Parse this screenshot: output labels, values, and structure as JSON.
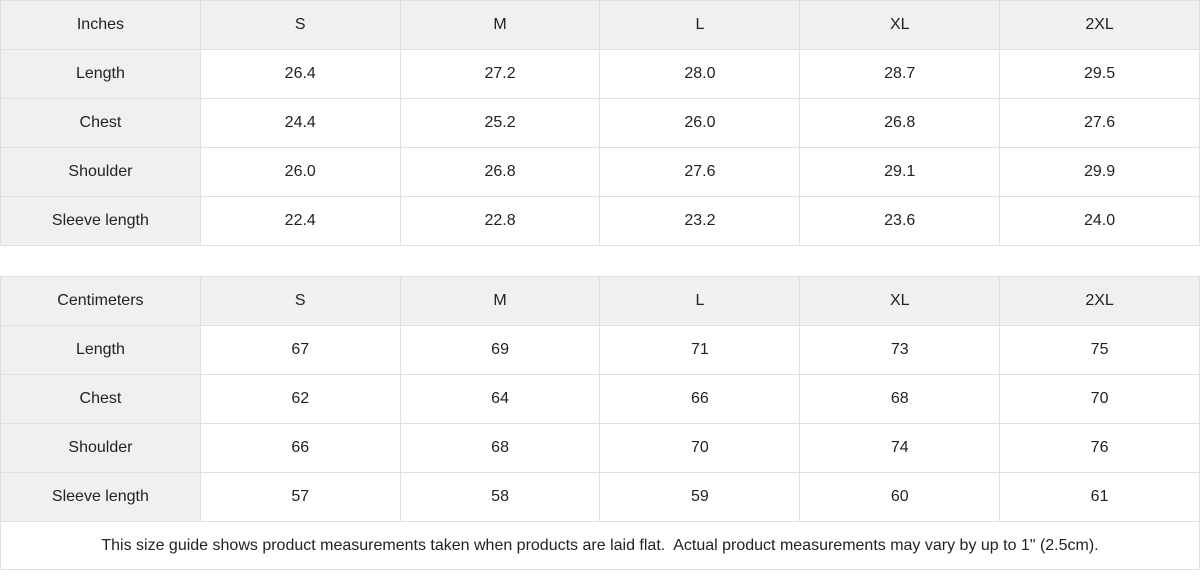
{
  "tables": {
    "inches": {
      "unit_label": "Inches",
      "columns": [
        "S",
        "M",
        "L",
        "XL",
        "2XL"
      ],
      "rows": [
        {
          "label": "Length",
          "values": [
            "26.4",
            "27.2",
            "28.0",
            "28.7",
            "29.5"
          ]
        },
        {
          "label": "Chest",
          "values": [
            "24.4",
            "25.2",
            "26.0",
            "26.8",
            "27.6"
          ]
        },
        {
          "label": "Shoulder",
          "values": [
            "26.0",
            "26.8",
            "27.6",
            "29.1",
            "29.9"
          ]
        },
        {
          "label": "Sleeve length",
          "values": [
            "22.4",
            "22.8",
            "23.2",
            "23.6",
            "24.0"
          ]
        }
      ]
    },
    "centimeters": {
      "unit_label": "Centimeters",
      "columns": [
        "S",
        "M",
        "L",
        "XL",
        "2XL"
      ],
      "rows": [
        {
          "label": "Length",
          "values": [
            "67",
            "69",
            "71",
            "73",
            "75"
          ]
        },
        {
          "label": "Chest",
          "values": [
            "62",
            "64",
            "66",
            "68",
            "70"
          ]
        },
        {
          "label": "Shoulder",
          "values": [
            "66",
            "68",
            "70",
            "74",
            "76"
          ]
        },
        {
          "label": "Sleeve length",
          "values": [
            "57",
            "58",
            "59",
            "60",
            "61"
          ]
        }
      ]
    }
  },
  "note": "This size guide shows product measurements taken when products are laid flat.  Actual product measurements may vary by up to 1\" (2.5cm).",
  "colors": {
    "header_bg": "#f0f0f0",
    "border": "#e0e0e0",
    "text": "#222222",
    "cell_bg": "#ffffff"
  }
}
